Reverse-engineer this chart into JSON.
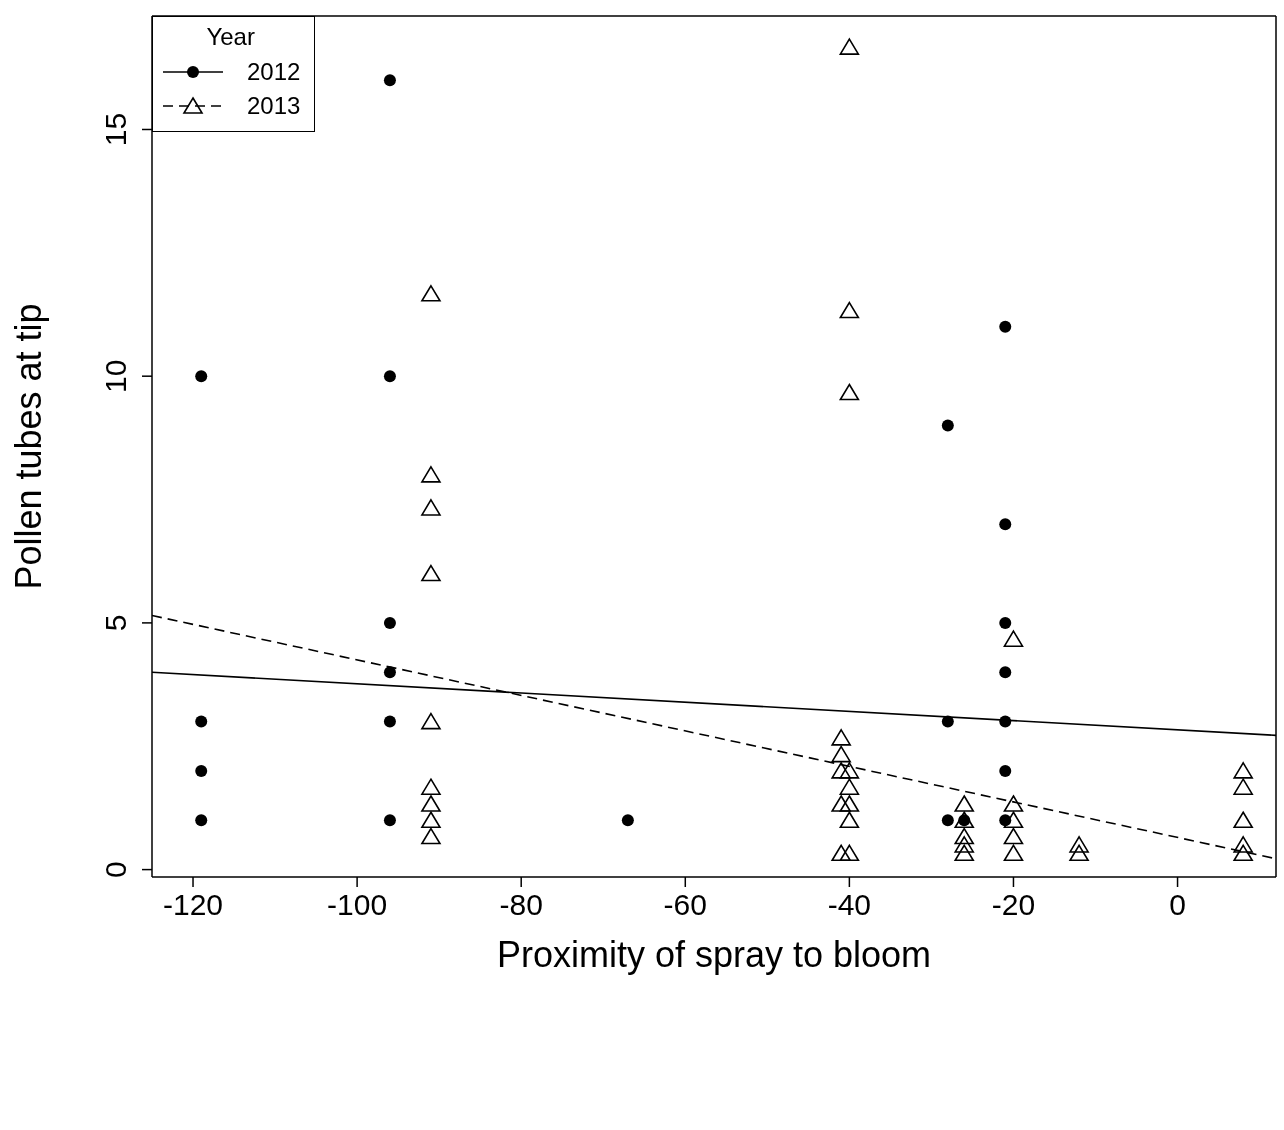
{
  "chart_data": {
    "type": "scatter",
    "xlabel": "Proximity of spray to bloom",
    "ylabel": "Pollen tubes at tip",
    "legend_title": "Year",
    "legend": "top left",
    "grid": false,
    "xlim": [
      -125,
      12
    ],
    "ylim": [
      -0.15,
      17.3
    ],
    "xticks": [
      -120,
      -100,
      -80,
      -60,
      -40,
      -20,
      0
    ],
    "yticks": [
      0,
      5,
      10,
      15
    ],
    "series": [
      {
        "name": "2012",
        "type": "scatter",
        "color": "#000000",
        "marker": "circle",
        "line_style": "solid",
        "x": [
          -119,
          -119,
          -119,
          -119,
          -96,
          -96,
          -96,
          -96,
          -96,
          -96,
          -67,
          -28,
          -28,
          -28,
          -26,
          -21,
          -21,
          -21,
          -21,
          -21,
          -21,
          -21
        ],
        "values": [
          10,
          3,
          2,
          1,
          16,
          10,
          5,
          4,
          3,
          1,
          1,
          9,
          3,
          1,
          1,
          11,
          7,
          5,
          4,
          3,
          2,
          1
        ]
      },
      {
        "name": "2013",
        "type": "scatter",
        "color": "#000000",
        "marker": "triangle",
        "line_style": "dashed",
        "x": [
          -91,
          -91,
          -91,
          -91,
          -91,
          -91,
          -91,
          -91,
          -91,
          -41,
          -41,
          -41,
          -41,
          -41,
          -40,
          -40,
          -40,
          -40,
          -40,
          -40,
          -40,
          -40,
          -26,
          -26,
          -26,
          -26,
          -26,
          -20,
          -20,
          -20,
          -20,
          -20,
          -12,
          -12,
          8,
          8,
          8,
          8,
          8
        ],
        "values": [
          11.67,
          8,
          7.33,
          6,
          3,
          1.67,
          1.33,
          1,
          0.67,
          2.67,
          2.33,
          2,
          1.33,
          0.33,
          16.67,
          11.33,
          9.67,
          2,
          1.67,
          1.33,
          1,
          0.33,
          1.33,
          1,
          0.67,
          0.5,
          0.33,
          4.67,
          1.33,
          1,
          0.67,
          0.33,
          0.5,
          0.33,
          2,
          1.67,
          1,
          0.5,
          0.33
        ]
      },
      {
        "type": "line",
        "color": "#000000",
        "line_style": "solid",
        "marker": "none",
        "x": [
          -125,
          12
        ],
        "values": [
          4.0,
          2.72
        ]
      },
      {
        "type": "line",
        "color": "#000000",
        "line_style": "dashed",
        "marker": "none",
        "x": [
          -125,
          12
        ],
        "values": [
          5.15,
          0.22
        ]
      }
    ]
  }
}
